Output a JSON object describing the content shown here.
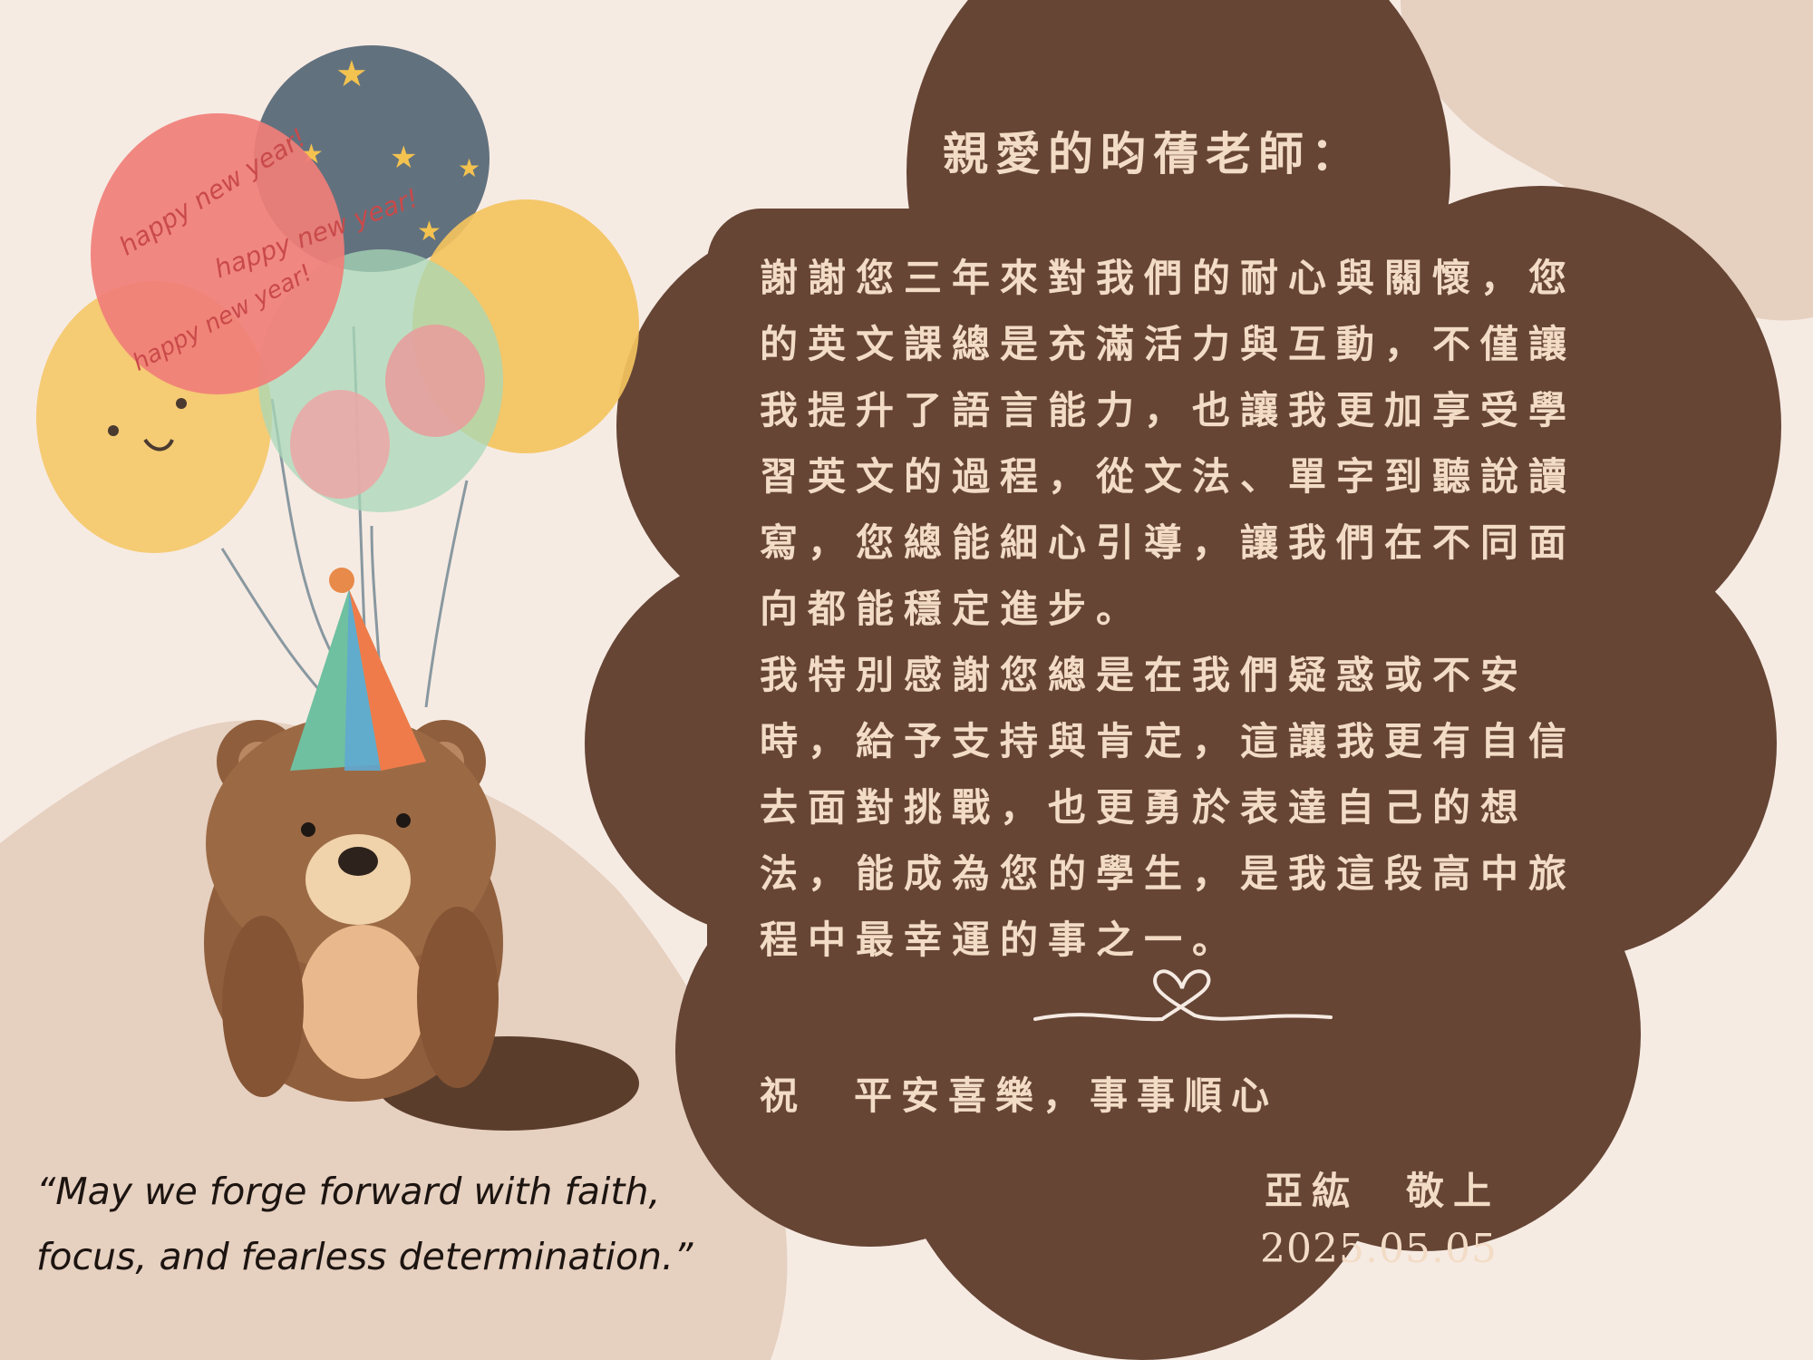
{
  "card": {
    "greeting": "親愛的昀蒨老師：",
    "paragraphs": [
      "謝謝您三年來對我們的耐心與關懷，您的英文課總是充滿活力與互動，不僅讓我提升了語言能力，也讓我更加享受學習英文的過程，從文法、單字到聽說讀寫，您總能細心引導，讓我們在不同面向都能穩定進步。",
      "我特別感謝您總是在我們疑惑或不安時，給予支持與肯定，這讓我更有自信去面對挑戰，也更勇於表達自己的想法，能成為您的學生，是我這段高中旅程中最幸運的事之一。"
    ],
    "blessing": "祝　平安喜樂，事事順心",
    "signature": "亞紘　敬上",
    "date": "2025.05.05"
  },
  "quote": "“May we forge forward with faith, focus, and fearless determination.”",
  "balloon_text": [
    "happy new year!",
    "happy new year!",
    "happy new year!"
  ],
  "icons": [
    "heart-divider-icon",
    "balloon-bunch-illustration",
    "bear-with-party-hat-illustration"
  ],
  "colors": {
    "background": "#f6ebe3",
    "blob": "#e6d0c0",
    "card_brown": "#664535",
    "card_text": "#f3dcc6",
    "quote_text": "#1c1410"
  }
}
